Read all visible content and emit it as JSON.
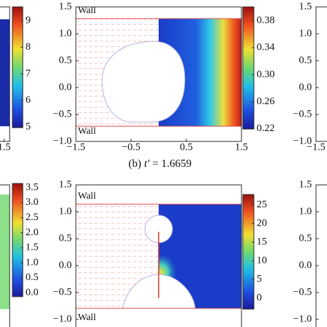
{
  "panels": [
    {
      "id": "top-left",
      "colorbar_ticks": [
        "9",
        "8",
        "7",
        "6",
        "5"
      ],
      "xticks": [
        "1.5"
      ]
    },
    {
      "id": "top-center",
      "yticks": [
        "1.5",
        "1.0",
        "0.5",
        "0.0",
        "−0.5",
        "−1.0"
      ],
      "xticks": [
        "−1.5",
        "−0.5",
        "0.5",
        "1.5"
      ],
      "walls": [
        "Wall",
        "Wall"
      ],
      "colorbar_ticks": [
        "0.38",
        "0.34",
        "0.30",
        "0.26",
        "0.22"
      ]
    },
    {
      "id": "top-right",
      "yticks": [
        "1.5",
        "1.0",
        "0.5",
        "0.0",
        "−0.5",
        "−1.0"
      ],
      "xticks": [
        "−1.5"
      ]
    },
    {
      "id": "bottom-left",
      "colorbar_ticks": [
        "3.5",
        "3.0",
        "2.5",
        "2.0",
        "1.5",
        "1.0",
        "0.5",
        "0.0"
      ]
    },
    {
      "id": "bottom-center",
      "yticks": [
        "1.5",
        "1.0",
        "0.5",
        "0.0",
        "−0.5",
        "−1.0"
      ],
      "walls": [
        "Wall",
        "Wall"
      ],
      "colorbar_ticks": [
        "25",
        "20",
        "15",
        "10",
        "5",
        "0"
      ]
    },
    {
      "id": "bottom-right",
      "yticks": [
        "1.5",
        "1.0",
        "0.5",
        "0.0",
        "−0.5",
        "−1.0"
      ]
    }
  ],
  "caption": {
    "label": "(b)",
    "symbol": "t′",
    "value": "= 1.6659"
  }
}
